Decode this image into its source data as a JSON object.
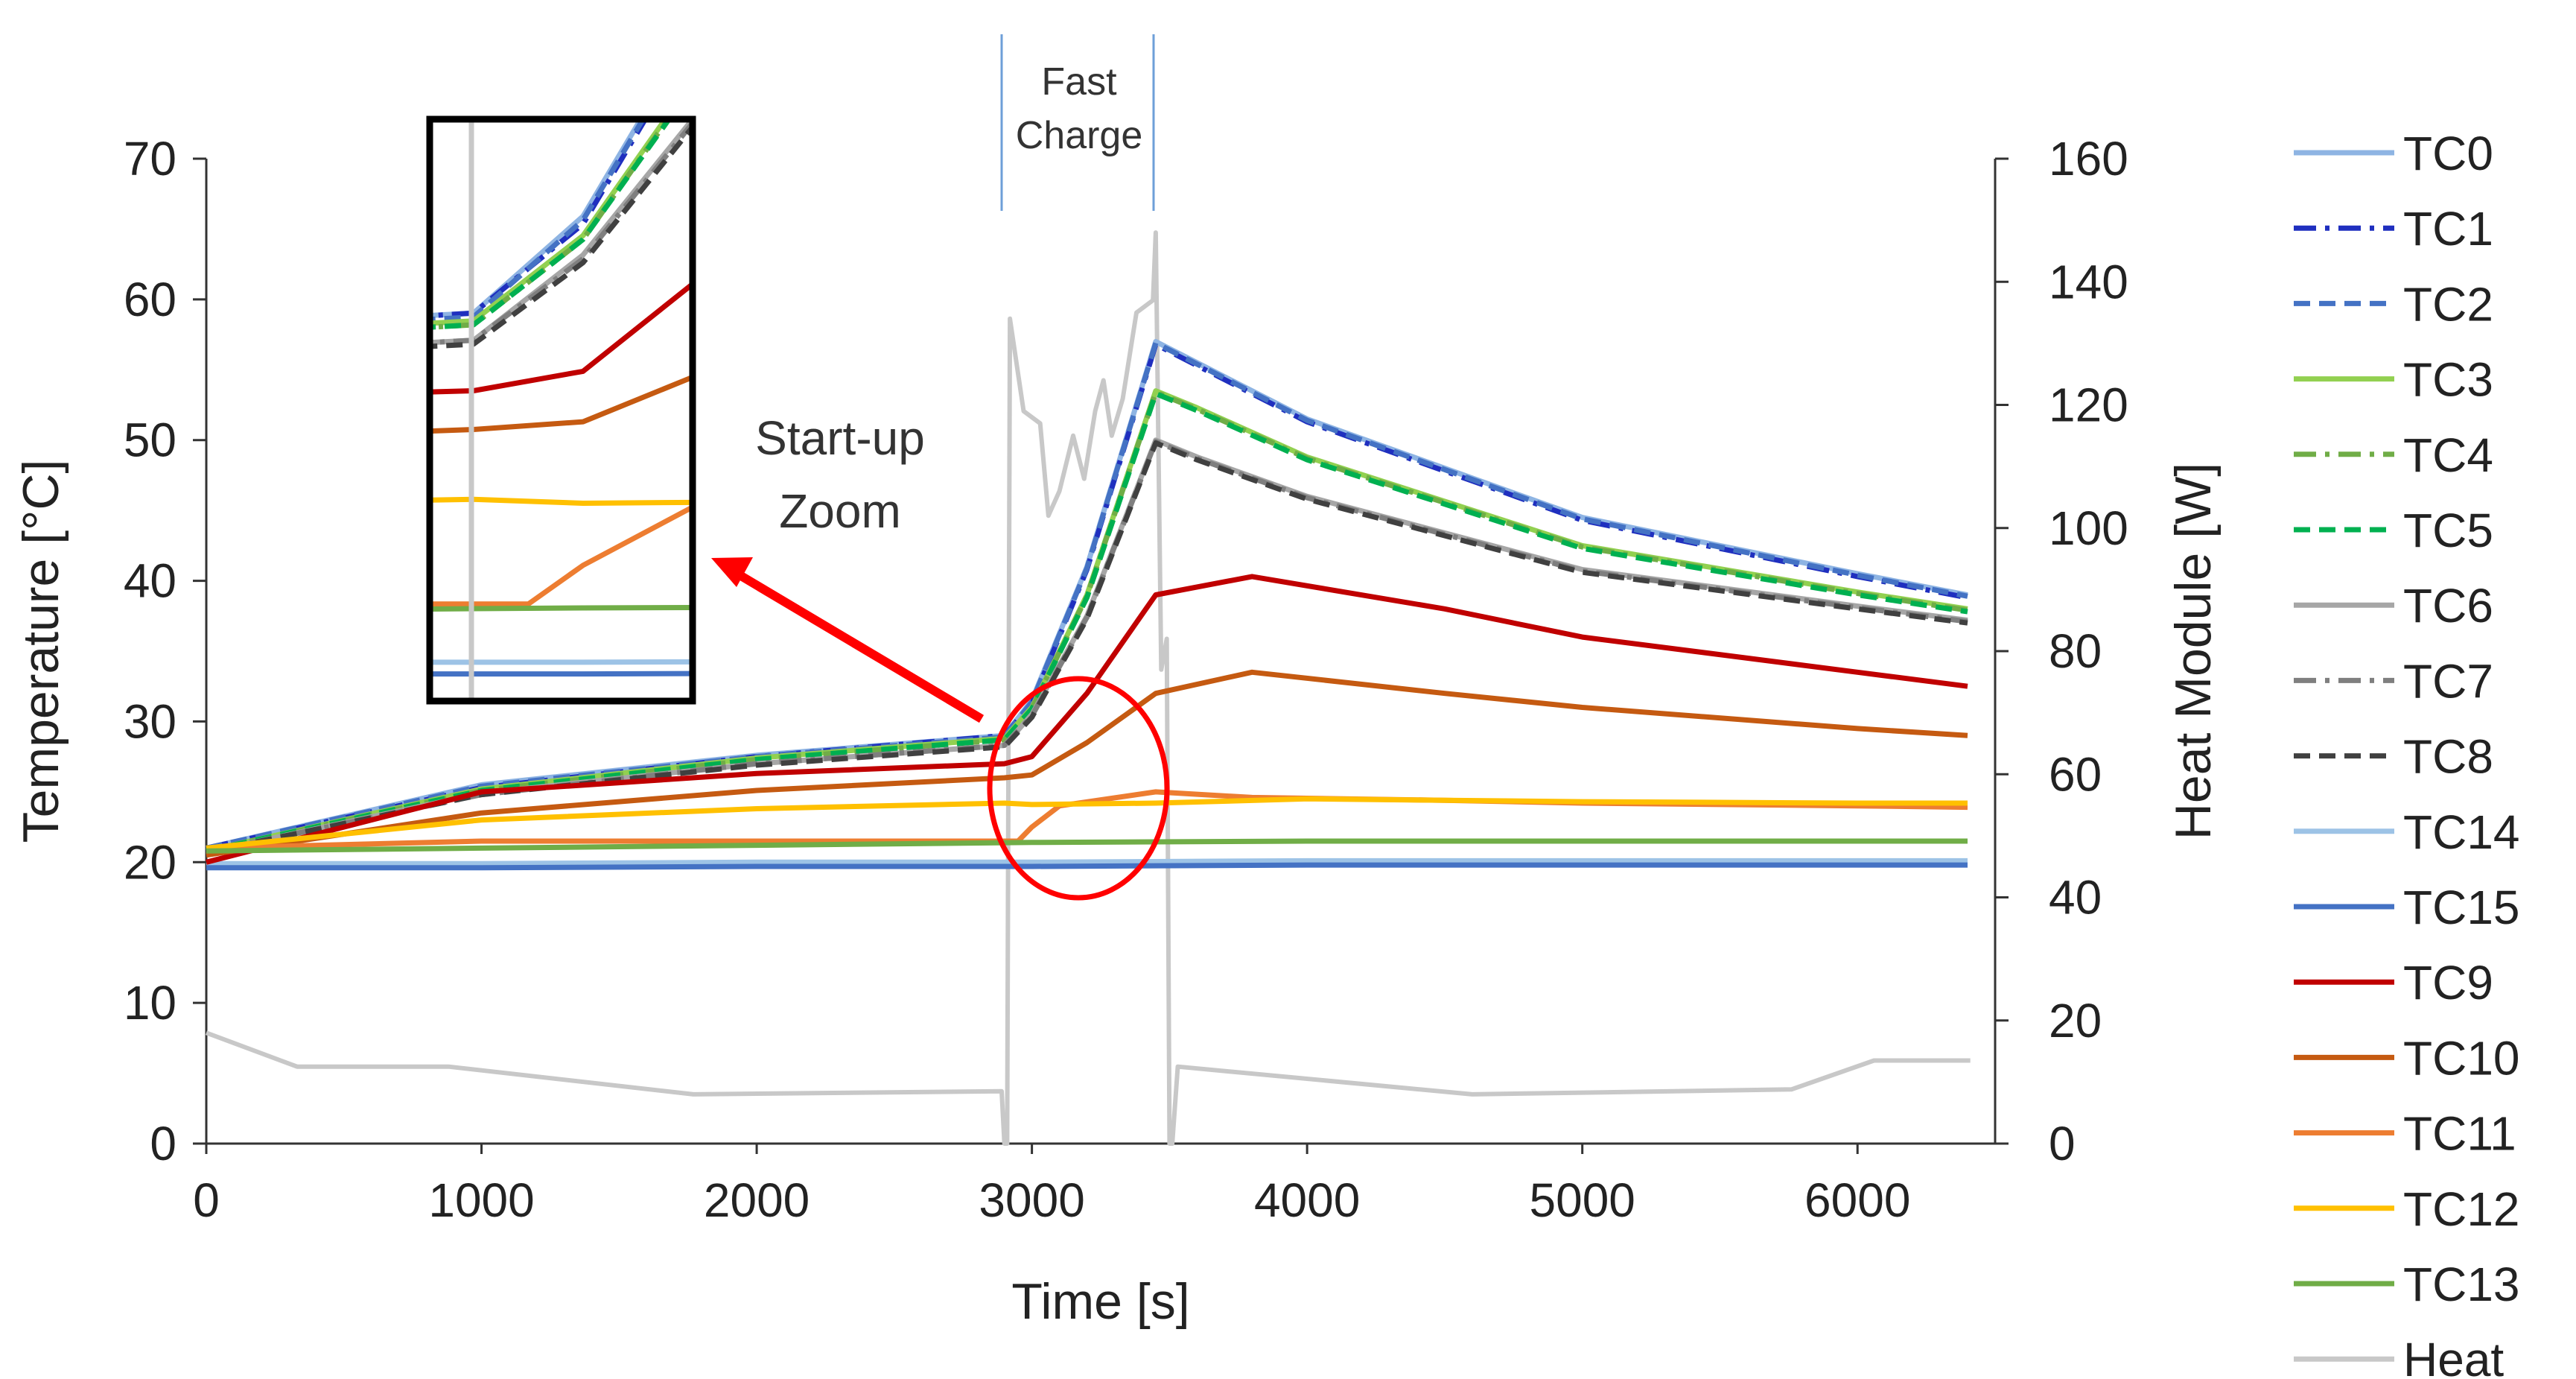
{
  "chart_data": {
    "type": "line",
    "title": "",
    "xlabel": "Time [s]",
    "ylabel": "Temperature [°C]",
    "y2label": "Heat Module [W]",
    "xlim": [
      0,
      6500
    ],
    "ylim": [
      0,
      70
    ],
    "y2lim": [
      0,
      160
    ],
    "xticks": [
      0,
      1000,
      2000,
      3000,
      4000,
      5000,
      6000
    ],
    "yticks": [
      0,
      10,
      20,
      30,
      40,
      50,
      60,
      70
    ],
    "y2ticks": [
      0,
      20,
      40,
      60,
      80,
      100,
      120,
      140,
      160
    ],
    "grid": false,
    "legend_position": "right",
    "annotations": {
      "fast_charge": [
        "Fast",
        "Charge"
      ],
      "zoom": [
        "Start-up",
        "Zoom"
      ]
    },
    "series": [
      {
        "name": "TC0",
        "color": "#8eb4e3",
        "dash": "solid",
        "x": [
          0,
          1000,
          2000,
          2900,
          3000,
          3200,
          3450,
          3600,
          4000,
          5000,
          6000,
          6400
        ],
        "y": [
          21,
          25.5,
          27.6,
          29,
          31.5,
          41,
          57,
          55.5,
          51.5,
          44.5,
          40.5,
          39
        ]
      },
      {
        "name": "TC1",
        "color": "#1f2fbf",
        "dash": "dashdot",
        "x": [
          0,
          1000,
          2000,
          2900,
          3000,
          3200,
          3450,
          3600,
          4000,
          5000,
          6000,
          6400
        ],
        "y": [
          21,
          25.3,
          27.5,
          29,
          31.3,
          40.8,
          56.8,
          55.3,
          51.3,
          44.3,
          40.3,
          38.8
        ]
      },
      {
        "name": "TC2",
        "color": "#4472c4",
        "dash": "dash",
        "x": [
          0,
          1000,
          2000,
          2900,
          3000,
          3200,
          3450,
          3600,
          4000,
          5000,
          6000,
          6400
        ],
        "y": [
          21,
          25.4,
          27.5,
          28.9,
          31.4,
          40.9,
          56.9,
          55.4,
          51.4,
          44.4,
          40.4,
          38.9
        ]
      },
      {
        "name": "TC3",
        "color": "#92d050",
        "dash": "solid",
        "x": [
          0,
          1000,
          2000,
          2900,
          3000,
          3200,
          3450,
          3600,
          4000,
          5000,
          6000,
          6400
        ],
        "y": [
          20.8,
          25.2,
          27.4,
          28.8,
          31,
          39,
          53.5,
          52.3,
          48.8,
          42.5,
          39.2,
          38
        ]
      },
      {
        "name": "TC4",
        "color": "#70ad47",
        "dash": "dashdot",
        "x": [
          0,
          1000,
          2000,
          2900,
          3000,
          3200,
          3450,
          3600,
          4000,
          5000,
          6000,
          6400
        ],
        "y": [
          20.8,
          25.1,
          27.3,
          28.7,
          30.9,
          38.9,
          53.4,
          52.2,
          48.7,
          42.4,
          39.1,
          37.9
        ]
      },
      {
        "name": "TC5",
        "color": "#00b050",
        "dash": "dash",
        "x": [
          0,
          1000,
          2000,
          2900,
          3000,
          3200,
          3450,
          3600,
          4000,
          5000,
          6000,
          6400
        ],
        "y": [
          20.8,
          25.1,
          27.3,
          28.7,
          30.9,
          38.8,
          53.3,
          52.1,
          48.6,
          42.3,
          39,
          37.8
        ]
      },
      {
        "name": "TC6",
        "color": "#a6a6a6",
        "dash": "solid",
        "x": [
          0,
          1000,
          2000,
          2900,
          3000,
          3200,
          3450,
          3600,
          4000,
          5000,
          6000,
          6400
        ],
        "y": [
          20.7,
          24.9,
          27,
          28.3,
          30.5,
          37.5,
          50,
          48.8,
          46,
          40.8,
          38.2,
          37.2
        ]
      },
      {
        "name": "TC7",
        "color": "#7f7f7f",
        "dash": "dashdot",
        "x": [
          0,
          1000,
          2000,
          2900,
          3000,
          3200,
          3450,
          3600,
          4000,
          5000,
          6000,
          6400
        ],
        "y": [
          20.7,
          24.8,
          27,
          28.3,
          30.4,
          37.4,
          49.9,
          48.7,
          45.9,
          40.7,
          38.1,
          37.1
        ]
      },
      {
        "name": "TC8",
        "color": "#404040",
        "dash": "dash",
        "x": [
          0,
          1000,
          2000,
          2900,
          3000,
          3200,
          3450,
          3600,
          4000,
          5000,
          6000,
          6400
        ],
        "y": [
          20.7,
          24.8,
          26.9,
          28.2,
          30.3,
          37.3,
          49.8,
          48.6,
          45.8,
          40.6,
          38,
          37
        ]
      },
      {
        "name": "TC14",
        "color": "#9dc3e6",
        "dash": "solid",
        "x": [
          0,
          1000,
          2000,
          3000,
          4000,
          5000,
          6000,
          6400
        ],
        "y": [
          19.9,
          19.9,
          20,
          20,
          20.1,
          20.1,
          20.1,
          20.1
        ]
      },
      {
        "name": "TC15",
        "color": "#4472c4",
        "dash": "solid",
        "x": [
          0,
          1000,
          2000,
          3000,
          4000,
          5000,
          6000,
          6400
        ],
        "y": [
          19.6,
          19.6,
          19.7,
          19.7,
          19.8,
          19.8,
          19.8,
          19.8
        ]
      },
      {
        "name": "TC9",
        "color": "#c00000",
        "dash": "solid",
        "x": [
          0,
          500,
          1000,
          2000,
          2900,
          3000,
          3200,
          3450,
          3800,
          4500,
          5000,
          6000,
          6400
        ],
        "y": [
          20,
          22.5,
          25,
          26.3,
          27,
          27.5,
          32,
          39,
          40.3,
          38,
          36,
          33.5,
          32.5
        ]
      },
      {
        "name": "TC10",
        "color": "#c55a11",
        "dash": "solid",
        "x": [
          0,
          500,
          1000,
          2000,
          2900,
          3000,
          3200,
          3450,
          3800,
          4500,
          5000,
          6000,
          6400
        ],
        "y": [
          20.5,
          22,
          23.5,
          25.1,
          26,
          26.2,
          28.5,
          32,
          33.5,
          32,
          31,
          29.5,
          29
        ]
      },
      {
        "name": "TC11",
        "color": "#ed7d31",
        "dash": "solid",
        "x": [
          0,
          1000,
          2000,
          2900,
          2950,
          3000,
          3100,
          3450,
          3800,
          4500,
          5000,
          6000,
          6400
        ],
        "y": [
          21,
          21.5,
          21.5,
          21.5,
          21.5,
          22.5,
          24,
          25,
          24.6,
          24.4,
          24.2,
          24,
          23.9
        ]
      },
      {
        "name": "TC12",
        "color": "#ffc000",
        "dash": "solid",
        "x": [
          0,
          500,
          1000,
          2000,
          2900,
          3000,
          3450,
          4000,
          5000,
          6000,
          6400
        ],
        "y": [
          21,
          22,
          23,
          23.8,
          24.2,
          24.1,
          24.2,
          24.5,
          24.3,
          24.2,
          24.2
        ]
      },
      {
        "name": "TC13",
        "color": "#70ad47",
        "dash": "solid",
        "x": [
          0,
          1000,
          2000,
          3000,
          4000,
          5000,
          6000,
          6400
        ],
        "y": [
          20.8,
          21,
          21.2,
          21.4,
          21.5,
          21.5,
          21.5,
          21.5
        ]
      },
      {
        "name": "Heat",
        "color": "#c8c8c8",
        "dash": "solid",
        "axis": "right",
        "x": [
          0,
          330,
          880,
          1770,
          2890,
          2900,
          2910,
          2920,
          2970,
          3030,
          3060,
          3100,
          3150,
          3190,
          3230,
          3260,
          3290,
          3330,
          3380,
          3440,
          3450,
          3470,
          3490,
          3500,
          3510,
          3530,
          4600,
          5760,
          6060,
          6410
        ],
        "y": [
          18,
          12.5,
          12.5,
          8,
          8.5,
          0,
          0,
          134,
          119,
          117,
          102,
          106,
          115,
          108,
          119,
          124,
          115,
          121,
          135,
          137,
          148,
          77,
          82,
          0,
          0,
          12.5,
          8,
          8.8,
          13.5,
          13.5
        ]
      }
    ]
  }
}
